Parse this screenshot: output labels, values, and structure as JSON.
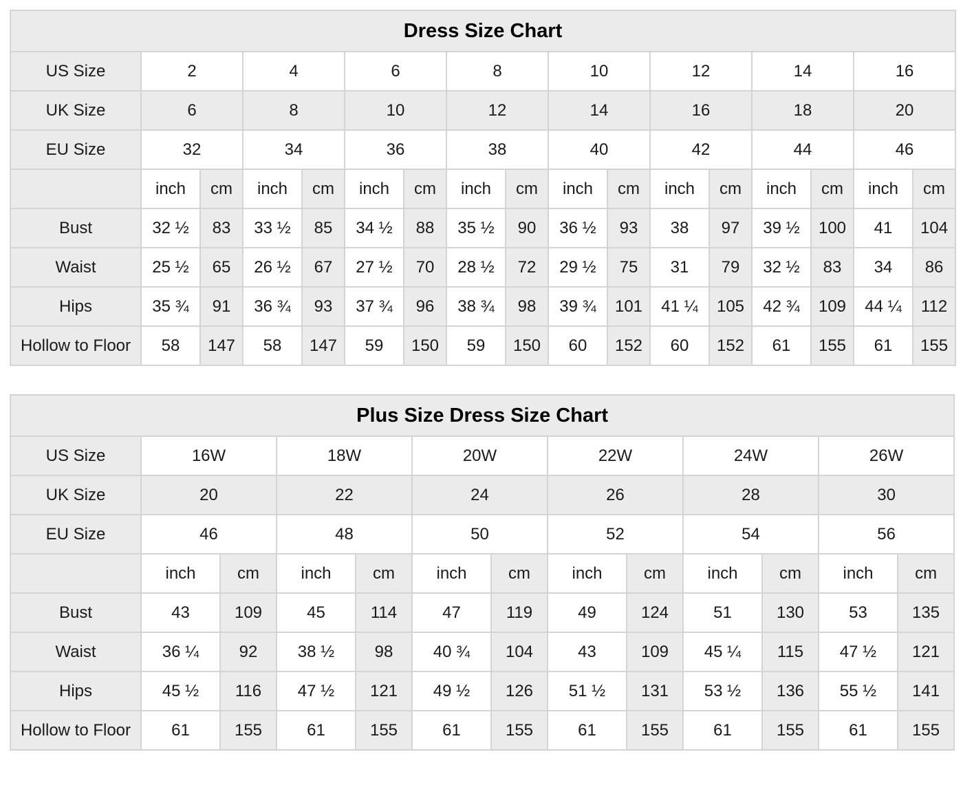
{
  "colors": {
    "shaded_bg": "#ebebeb",
    "cell_bg": "#ffffff",
    "border": "#d4d4d4",
    "outer_border": "#c4c4c4",
    "text": "#1a1a1a",
    "title_text": "#000000"
  },
  "charts": [
    {
      "title": "Dress Size Chart",
      "unit_labels": [
        "inch",
        "cm"
      ],
      "size_rows": [
        {
          "label": "US Size",
          "shaded": false,
          "values": [
            "2",
            "4",
            "6",
            "8",
            "10",
            "12",
            "14",
            "16"
          ]
        },
        {
          "label": "UK Size",
          "shaded": true,
          "values": [
            "6",
            "8",
            "10",
            "12",
            "14",
            "16",
            "18",
            "20"
          ]
        },
        {
          "label": "EU Size",
          "shaded": false,
          "values": [
            "32",
            "34",
            "36",
            "38",
            "40",
            "42",
            "44",
            "46"
          ]
        }
      ],
      "measurement_rows": [
        {
          "label": "Bust",
          "inch": [
            "32 ½",
            "33 ½",
            "34 ½",
            "35 ½",
            "36 ½",
            "38",
            "39 ½",
            "41"
          ],
          "cm": [
            "83",
            "85",
            "88",
            "90",
            "93",
            "97",
            "100",
            "104"
          ]
        },
        {
          "label": "Waist",
          "inch": [
            "25 ½",
            "26 ½",
            "27 ½",
            "28 ½",
            "29 ½",
            "31",
            "32 ½",
            "34"
          ],
          "cm": [
            "65",
            "67",
            "70",
            "72",
            "75",
            "79",
            "83",
            "86"
          ]
        },
        {
          "label": "Hips",
          "inch": [
            "35 ¾",
            "36 ¾",
            "37 ¾",
            "38 ¾",
            "39 ¾",
            "41 ¼",
            "42 ¾",
            "44 ¼"
          ],
          "cm": [
            "91",
            "93",
            "96",
            "98",
            "101",
            "105",
            "109",
            "112"
          ]
        },
        {
          "label": "Hollow to Floor",
          "inch": [
            "58",
            "58",
            "59",
            "59",
            "60",
            "60",
            "61",
            "61"
          ],
          "cm": [
            "147",
            "147",
            "150",
            "150",
            "152",
            "152",
            "155",
            "155"
          ]
        }
      ]
    },
    {
      "title": "Plus Size Dress Size Chart",
      "unit_labels": [
        "inch",
        "cm"
      ],
      "size_rows": [
        {
          "label": "US Size",
          "shaded": false,
          "values": [
            "16W",
            "18W",
            "20W",
            "22W",
            "24W",
            "26W"
          ]
        },
        {
          "label": "UK Size",
          "shaded": true,
          "values": [
            "20",
            "22",
            "24",
            "26",
            "28",
            "30"
          ]
        },
        {
          "label": "EU Size",
          "shaded": false,
          "values": [
            "46",
            "48",
            "50",
            "52",
            "54",
            "56"
          ]
        }
      ],
      "measurement_rows": [
        {
          "label": "Bust",
          "inch": [
            "43",
            "45",
            "47",
            "49",
            "51",
            "53"
          ],
          "cm": [
            "109",
            "114",
            "119",
            "124",
            "130",
            "135"
          ]
        },
        {
          "label": "Waist",
          "inch": [
            "36 ¼",
            "38 ½",
            "40 ¾",
            "43",
            "45 ¼",
            "47 ½"
          ],
          "cm": [
            "92",
            "98",
            "104",
            "109",
            "115",
            "121"
          ]
        },
        {
          "label": "Hips",
          "inch": [
            "45 ½",
            "47 ½",
            "49 ½",
            "51 ½",
            "53 ½",
            "55 ½"
          ],
          "cm": [
            "116",
            "121",
            "126",
            "131",
            "136",
            "141"
          ]
        },
        {
          "label": "Hollow to Floor",
          "inch": [
            "61",
            "61",
            "61",
            "61",
            "61",
            "61"
          ],
          "cm": [
            "155",
            "155",
            "155",
            "155",
            "155",
            "155"
          ]
        }
      ]
    }
  ]
}
